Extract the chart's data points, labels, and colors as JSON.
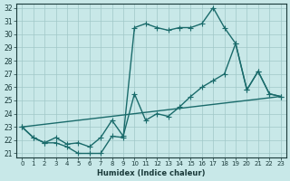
{
  "xlabel": "Humidex (Indice chaleur)",
  "background_color": "#c8e8e8",
  "grid_color": "#a0c8c8",
  "line_color": "#1a6b6b",
  "xlim_min": -0.5,
  "xlim_max": 23.5,
  "ylim_min": 20.7,
  "ylim_max": 32.3,
  "xticks": [
    0,
    1,
    2,
    3,
    4,
    5,
    6,
    7,
    8,
    9,
    10,
    11,
    12,
    13,
    14,
    15,
    16,
    17,
    18,
    19,
    20,
    21,
    22,
    23
  ],
  "yticks": [
    21,
    22,
    23,
    24,
    25,
    26,
    27,
    28,
    29,
    30,
    31,
    32
  ],
  "line1_x": [
    0,
    1,
    2,
    3,
    4,
    5,
    6,
    7,
    8,
    9,
    10,
    11,
    12,
    13,
    14,
    15,
    16,
    17,
    18,
    19,
    20,
    21,
    22,
    23
  ],
  "line1_y": [
    23.0,
    22.2,
    21.8,
    21.8,
    21.5,
    21.0,
    21.0,
    21.0,
    22.3,
    22.2,
    30.5,
    30.8,
    30.5,
    30.3,
    30.5,
    30.5,
    30.8,
    32.0,
    30.5,
    29.3,
    25.8,
    27.2,
    25.5,
    25.3
  ],
  "line2_x": [
    0,
    1,
    2,
    3,
    4,
    5,
    6,
    7,
    8,
    9,
    10,
    11,
    12,
    13,
    14,
    15,
    16,
    17,
    18,
    19,
    20,
    21,
    22,
    23
  ],
  "line2_y": [
    23.0,
    22.2,
    21.8,
    22.2,
    21.7,
    21.8,
    21.5,
    22.2,
    23.5,
    22.3,
    25.5,
    23.5,
    24.0,
    23.8,
    24.5,
    25.3,
    26.0,
    26.5,
    27.0,
    29.3,
    25.8,
    27.2,
    25.5,
    25.3
  ],
  "line3_x": [
    0,
    23
  ],
  "line3_y": [
    23.0,
    25.3
  ],
  "marker_size": 2.5,
  "linewidth": 1.0
}
